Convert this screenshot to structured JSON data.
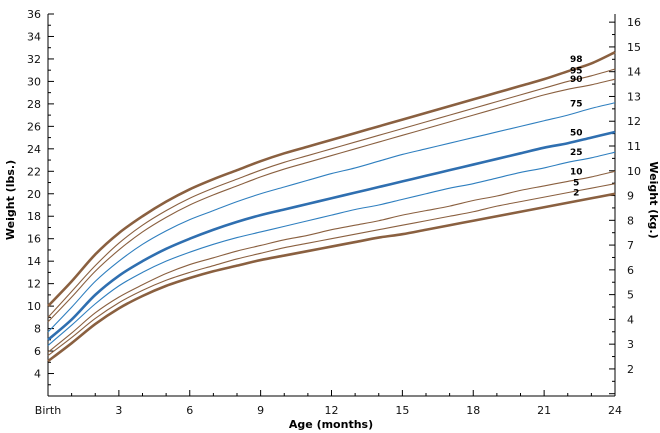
{
  "chart_data": {
    "type": "line",
    "xlabel": "Age (months)",
    "ylabel_left": "Weight (lbs.)",
    "ylabel_right": "Weight (kg.)",
    "xlim": [
      0,
      24
    ],
    "ylim_left": [
      2,
      36
    ],
    "ylim_right": [
      0.9072,
      16.329
    ],
    "x_ticks": [
      0,
      3,
      6,
      9,
      12,
      15,
      18,
      21,
      24
    ],
    "x_tick_labels": [
      "Birth",
      "3",
      "6",
      "9",
      "12",
      "15",
      "18",
      "21",
      "24"
    ],
    "y_left_ticks": [
      4,
      6,
      8,
      10,
      12,
      14,
      16,
      18,
      20,
      22,
      24,
      26,
      28,
      30,
      32,
      34,
      36
    ],
    "y_right_ticks": [
      2,
      3,
      4,
      5,
      6,
      7,
      8,
      9,
      10,
      11,
      12,
      13,
      14,
      15,
      16
    ],
    "grid": false,
    "x": [
      0,
      1,
      2,
      3,
      4,
      5,
      6,
      7,
      8,
      9,
      10,
      11,
      12,
      13,
      14,
      15,
      16,
      17,
      18,
      19,
      20,
      21,
      22,
      23,
      24
    ],
    "series": [
      {
        "name": "98",
        "color": "#8a6040",
        "values": [
          10.0,
          12.2,
          14.6,
          16.5,
          18.0,
          19.3,
          20.4,
          21.3,
          22.1,
          22.9,
          23.6,
          24.2,
          24.8,
          25.4,
          26.0,
          26.6,
          27.2,
          27.8,
          28.4,
          29.0,
          29.6,
          30.2,
          30.9,
          31.6,
          32.6
        ]
      },
      {
        "name": "95",
        "color": "#8a6040",
        "values": [
          9.0,
          11.3,
          13.6,
          15.6,
          17.2,
          18.5,
          19.6,
          20.5,
          21.3,
          22.1,
          22.8,
          23.4,
          24.0,
          24.6,
          25.2,
          25.8,
          26.4,
          27.0,
          27.6,
          28.2,
          28.8,
          29.4,
          30.0,
          30.5,
          31.1
        ]
      },
      {
        "name": "90",
        "color": "#8a6040",
        "values": [
          8.6,
          10.8,
          13.1,
          15.0,
          16.6,
          17.9,
          19.0,
          19.9,
          20.7,
          21.5,
          22.2,
          22.8,
          23.4,
          24.0,
          24.6,
          25.2,
          25.8,
          26.4,
          27.0,
          27.6,
          28.2,
          28.8,
          29.3,
          29.7,
          30.2
        ]
      },
      {
        "name": "75",
        "color": "#2f7fbf",
        "values": [
          7.7,
          9.9,
          12.2,
          14.0,
          15.5,
          16.7,
          17.7,
          18.5,
          19.3,
          20.0,
          20.6,
          21.2,
          21.8,
          22.3,
          22.9,
          23.5,
          24.0,
          24.5,
          25.0,
          25.5,
          26.0,
          26.5,
          27.0,
          27.6,
          28.1
        ]
      },
      {
        "name": "50",
        "color": "#2f6fb0",
        "values": [
          7.0,
          8.8,
          11.0,
          12.7,
          14.0,
          15.1,
          16.0,
          16.8,
          17.5,
          18.1,
          18.6,
          19.1,
          19.6,
          20.1,
          20.6,
          21.1,
          21.6,
          22.1,
          22.6,
          23.1,
          23.6,
          24.1,
          24.5,
          25.0,
          25.5
        ]
      },
      {
        "name": "25",
        "color": "#2f7fbf",
        "values": [
          6.5,
          8.3,
          10.2,
          11.8,
          13.0,
          14.0,
          14.8,
          15.5,
          16.1,
          16.6,
          17.1,
          17.6,
          18.1,
          18.6,
          19.0,
          19.5,
          20.0,
          20.5,
          20.9,
          21.4,
          21.9,
          22.3,
          22.8,
          23.2,
          23.7
        ]
      },
      {
        "name": "10",
        "color": "#8a6040",
        "values": [
          5.9,
          7.6,
          9.4,
          10.8,
          11.9,
          12.9,
          13.7,
          14.3,
          14.9,
          15.4,
          15.9,
          16.3,
          16.8,
          17.2,
          17.6,
          18.1,
          18.5,
          18.9,
          19.4,
          19.8,
          20.3,
          20.7,
          21.1,
          21.5,
          22.0
        ]
      },
      {
        "name": "5",
        "color": "#8a6040",
        "values": [
          5.6,
          7.2,
          8.9,
          10.3,
          11.4,
          12.3,
          13.0,
          13.6,
          14.2,
          14.7,
          15.2,
          15.6,
          16.0,
          16.4,
          16.8,
          17.2,
          17.6,
          18.0,
          18.4,
          18.9,
          19.3,
          19.7,
          20.1,
          20.5,
          20.9
        ]
      },
      {
        "name": "2",
        "color": "#8a6040",
        "values": [
          5.1,
          6.7,
          8.4,
          9.8,
          10.9,
          11.8,
          12.5,
          13.1,
          13.6,
          14.1,
          14.5,
          14.9,
          15.3,
          15.7,
          16.1,
          16.4,
          16.8,
          17.2,
          17.6,
          18.0,
          18.4,
          18.8,
          19.2,
          19.6,
          20.0
        ]
      }
    ],
    "thick_series": [
      "98",
      "50",
      "2"
    ]
  }
}
